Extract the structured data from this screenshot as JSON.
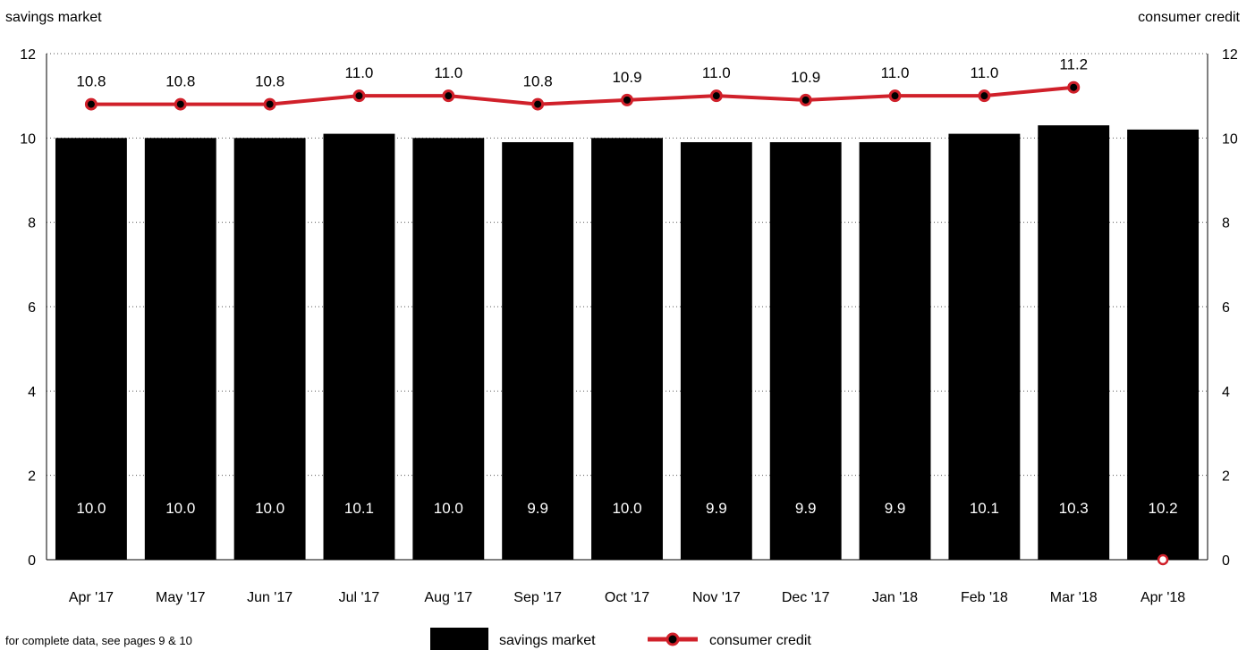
{
  "chart_data": {
    "type": "bar",
    "title": "",
    "left_axis_label": "savings market",
    "right_axis_label": "consumer credit",
    "categories": [
      "Apr '17",
      "May '17",
      "Jun '17",
      "Jul '17",
      "Aug '17",
      "Sep '17",
      "Oct '17",
      "Nov '17",
      "Dec '17",
      "Jan '18",
      "Feb '18",
      "Mar '18",
      "Apr '18"
    ],
    "y_ticks": [
      "0",
      "2",
      "4",
      "6",
      "8",
      "10",
      "12"
    ],
    "ylim": [
      0,
      12
    ],
    "grid": "horizontal dotted",
    "series": [
      {
        "name": "savings market",
        "type": "bar",
        "axis": "left",
        "color": "#000000",
        "values": [
          10.0,
          10.0,
          10.0,
          10.1,
          10.0,
          9.9,
          10.0,
          9.9,
          9.9,
          9.9,
          10.1,
          10.3,
          10.2
        ],
        "labels": [
          "10.0",
          "10.0",
          "10.0",
          "10.1",
          "10.0",
          "9.9",
          "10.0",
          "9.9",
          "9.9",
          "9.9",
          "10.1",
          "10.3",
          "10.2"
        ]
      },
      {
        "name": "consumer credit",
        "type": "line",
        "axis": "right",
        "color": "#d0202a",
        "values": [
          10.8,
          10.8,
          10.8,
          11.0,
          11.0,
          10.8,
          10.9,
          11.0,
          10.9,
          11.0,
          11.0,
          11.2,
          0
        ],
        "labels": [
          "10.8",
          "10.8",
          "10.8",
          "11.0",
          "11.0",
          "10.8",
          "10.9",
          "11.0",
          "10.9",
          "11.0",
          "11.0",
          "11.2",
          ""
        ]
      }
    ],
    "legend": {
      "position": "bottom",
      "items": [
        {
          "label": "savings market",
          "color": "#000000"
        },
        {
          "label": "consumer credit",
          "color": "#d0202a"
        }
      ]
    }
  },
  "footer_note": "for complete data, see pages 9 & 10"
}
